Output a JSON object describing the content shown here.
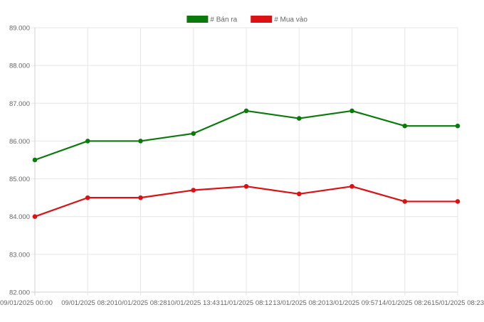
{
  "chart_data": {
    "type": "line",
    "x": [
      "09/01/2025 00:00",
      "09/01/2025 08:20",
      "10/01/2025 08:28",
      "10/01/2025 13:43",
      "11/01/2025 08:12",
      "13/01/2025 08:20",
      "13/01/2025 09:57",
      "14/01/2025 08:26",
      "15/01/2025 08:23"
    ],
    "series": [
      {
        "name": "# Bán ra",
        "color": "#0a7a0a",
        "values": [
          85500,
          86000,
          86000,
          86200,
          86800,
          86600,
          86800,
          86400,
          86400
        ]
      },
      {
        "name": "# Mua vào",
        "color": "#dd1111",
        "values": [
          84000,
          84500,
          84500,
          84700,
          84800,
          84600,
          84800,
          84400,
          84400
        ]
      }
    ],
    "ylim": [
      82000,
      89000
    ],
    "yticks": [
      "82.000",
      "83.000",
      "84.000",
      "85.000",
      "86.000",
      "87.000",
      "88.000",
      "89.000"
    ],
    "grid": true,
    "legend": "top-center"
  }
}
